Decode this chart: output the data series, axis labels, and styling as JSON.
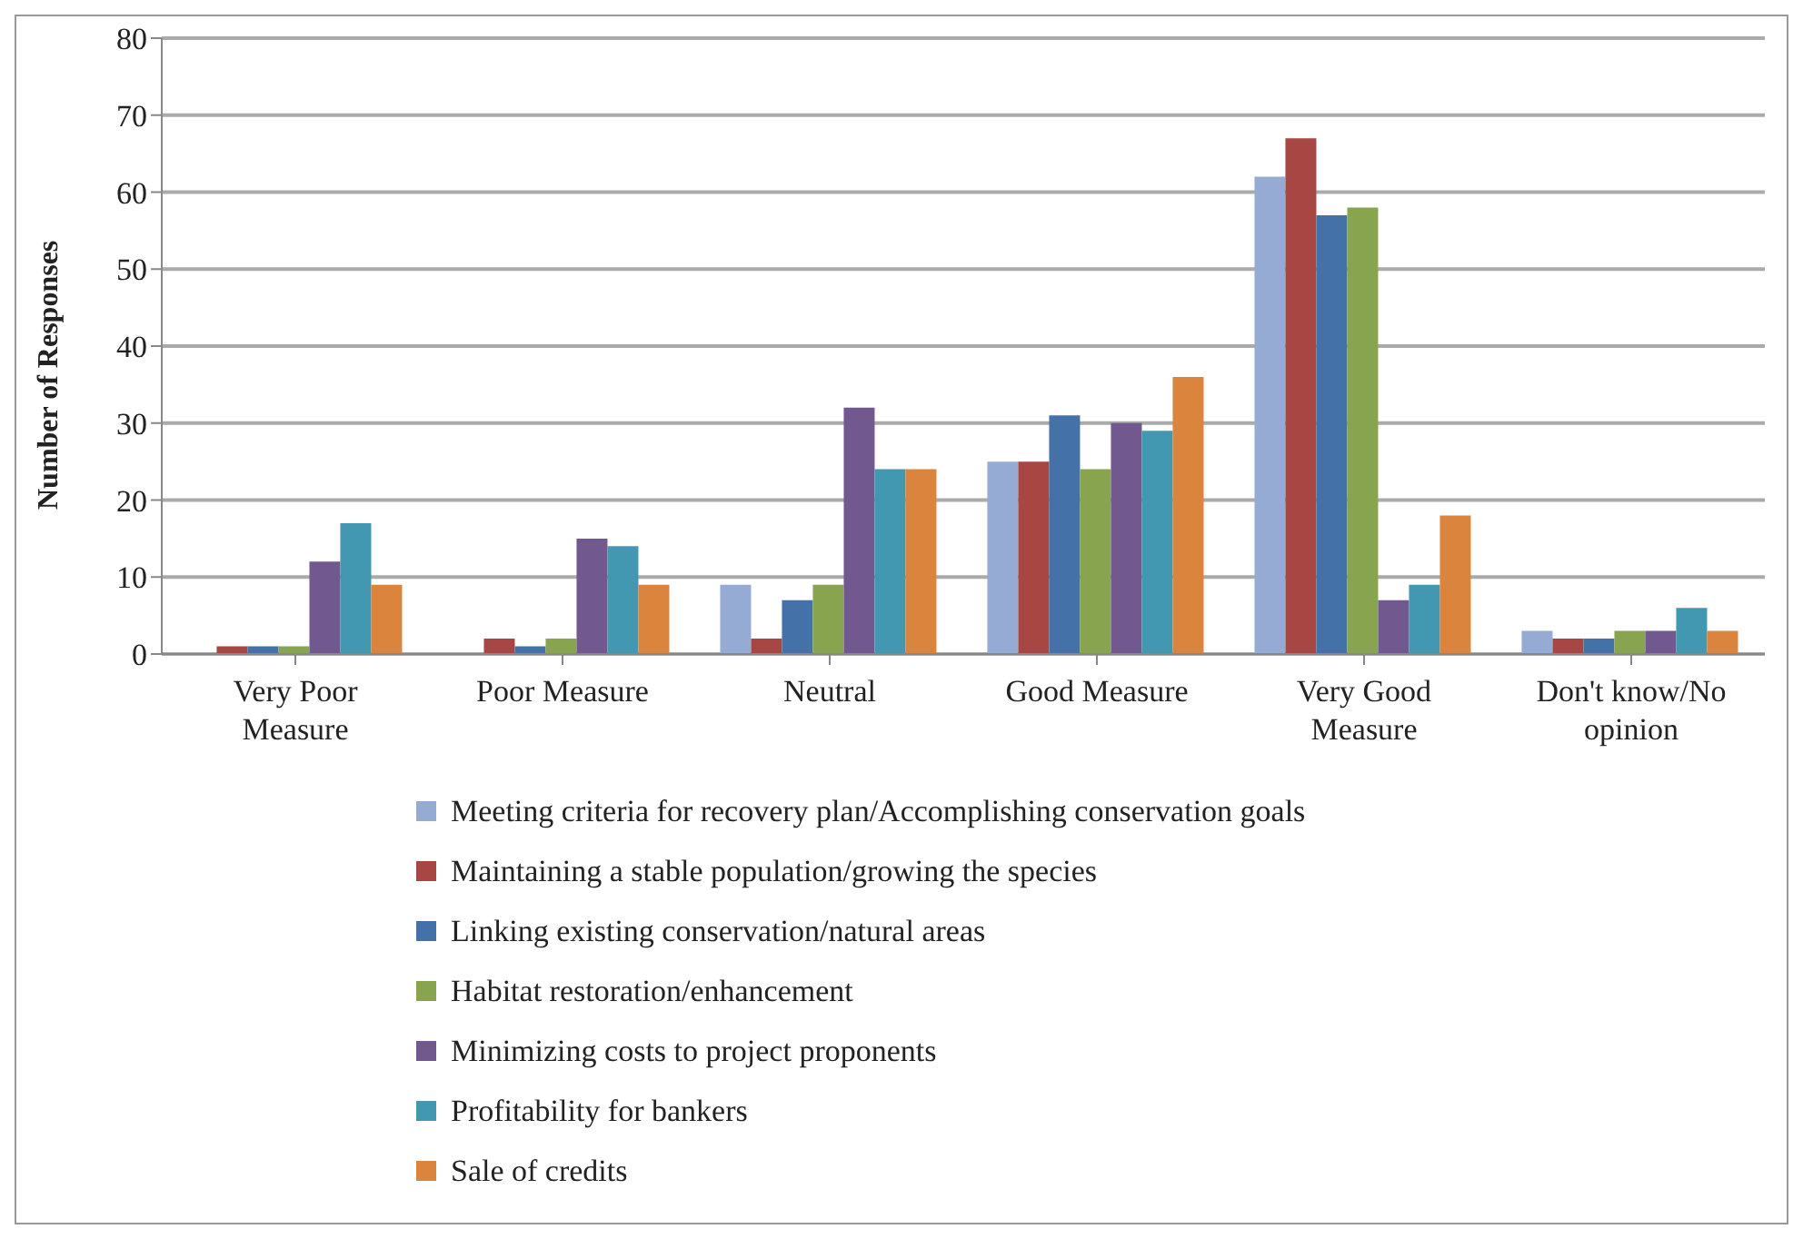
{
  "chart_data": {
    "type": "bar",
    "ylabel": "Number of Responses",
    "categories": [
      "Very Poor Measure",
      "Poor Measure",
      "Neutral",
      "Good Measure",
      "Very Good Measure",
      "Don't know/No opinion"
    ],
    "series": [
      {
        "name": "Meeting criteria for recovery plan/Accomplishing conservation goals",
        "color": "#95abd3",
        "values": [
          0,
          0,
          9,
          25,
          62,
          3
        ]
      },
      {
        "name": "Maintaining a stable population/growing the species",
        "color": "#a84644",
        "values": [
          1,
          2,
          2,
          25,
          67,
          2
        ]
      },
      {
        "name": "Linking existing conservation/natural areas",
        "color": "#4472a8",
        "values": [
          1,
          1,
          7,
          31,
          57,
          2
        ]
      },
      {
        "name": "Habitat restoration/enhancement",
        "color": "#89a44e",
        "values": [
          1,
          2,
          9,
          24,
          58,
          3
        ]
      },
      {
        "name": "Minimizing  costs to project proponents",
        "color": "#71588f",
        "values": [
          12,
          15,
          32,
          30,
          7,
          3
        ]
      },
      {
        "name": "Profitability for bankers",
        "color": "#4298b0",
        "values": [
          17,
          14,
          24,
          29,
          9,
          6
        ]
      },
      {
        "name": "Sale of credits",
        "color": "#db843d",
        "values": [
          9,
          9,
          24,
          36,
          18,
          3
        ]
      }
    ],
    "ylim": [
      0,
      80
    ],
    "yticks": [
      0,
      10,
      20,
      30,
      40,
      50,
      60,
      70,
      80
    ],
    "grid": "y",
    "legend": "bottom"
  }
}
